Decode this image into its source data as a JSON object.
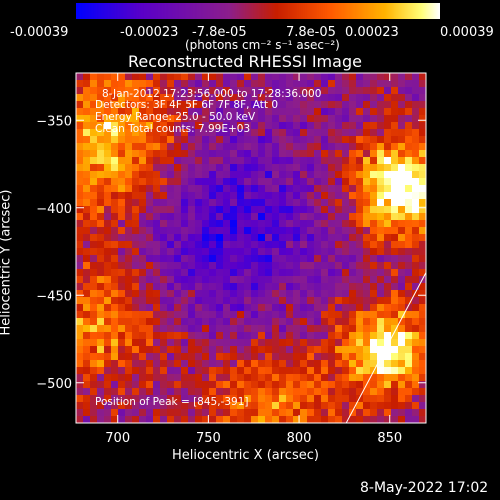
{
  "colorbar": {
    "ticks": [
      "-0.00039",
      "-0.00023",
      "-7.8e-05",
      "7.8e-05",
      "0.00023",
      "0.00039"
    ],
    "tick_values": [
      -0.00039,
      -0.00023,
      -7.8e-05,
      7.8e-05,
      0.00023,
      0.00039
    ],
    "range": [
      -0.00039,
      0.00039
    ],
    "units": "(photons cm⁻² s⁻¹ asec⁻²)",
    "colors": [
      "#0000ff",
      "#5a00c8",
      "#8a1f8a",
      "#c81e00",
      "#ff5a00",
      "#ffb400",
      "#ffff78",
      "#ffffff"
    ]
  },
  "chart_data": {
    "type": "heatmap",
    "title": "Reconstructed RHESSI Image",
    "xlabel": "Heliocentric X (arcsec)",
    "ylabel": "Heliocentric Y (arcsec)",
    "xlim": [
      677,
      870
    ],
    "ylim": [
      -523,
      -323
    ],
    "x_ticks": [
      700,
      750,
      800,
      850
    ],
    "y_ticks": [
      -350,
      -400,
      -450,
      -500
    ],
    "peak": [
      845,
      -391
    ],
    "limb_line": [
      [
        826,
        -523
      ],
      [
        870,
        -437
      ]
    ]
  },
  "annotations": {
    "time": "8-Jan-2012 17:23:56.000 to 17:28:36.000",
    "detectors": "Detectors: 3F 4F 5F 6F 7F 8F, Att 0",
    "energy": "Energy Range: 25.0 - 50.0 keV",
    "clean": "Clean     Total counts: 7.99E+03",
    "peak_label": "Position of Peak = [845,-391]"
  },
  "footer": {
    "date": "8-May-2022 17:02"
  }
}
